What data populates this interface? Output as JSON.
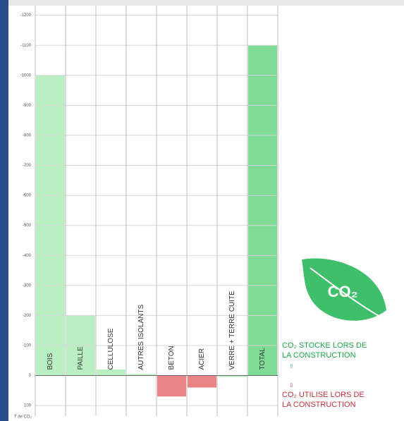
{
  "chart_data": {
    "type": "bar",
    "categories": [
      "BOIS",
      "PAILLE",
      "CELLULOSE",
      "AUTRES ISOLANTS",
      "BETON",
      "ACIER",
      "VERRE + TERRE CUITE",
      "TOTAL"
    ],
    "values": [
      -1000,
      -200,
      -20,
      -5,
      70,
      40,
      5,
      -1100
    ],
    "colors": [
      "#b9efc3",
      "#b9efc3",
      "#b9efc3",
      "#b9efc3",
      "#e98585",
      "#e98585",
      "#b9efc3",
      "#7fdc97"
    ],
    "ylim": [
      -1232,
      135
    ],
    "yticks": [
      -1200,
      -1100,
      -1000,
      -900,
      -800,
      -700,
      -600,
      -500,
      -400,
      -300,
      -200,
      -100,
      0,
      100
    ],
    "ylabel": "T de CO₂",
    "grid": true,
    "badge": "CO₂",
    "legend": [
      {
        "lines": [
          "CO₂ STOCKE LORS DE",
          "LA CONSTRUCTION"
        ],
        "color": "#1aa64a"
      },
      {
        "lines": [
          "CO₂ UTILISE LORS DE",
          "LA CONSTRUCTION"
        ],
        "color": "#c8323c"
      }
    ]
  }
}
